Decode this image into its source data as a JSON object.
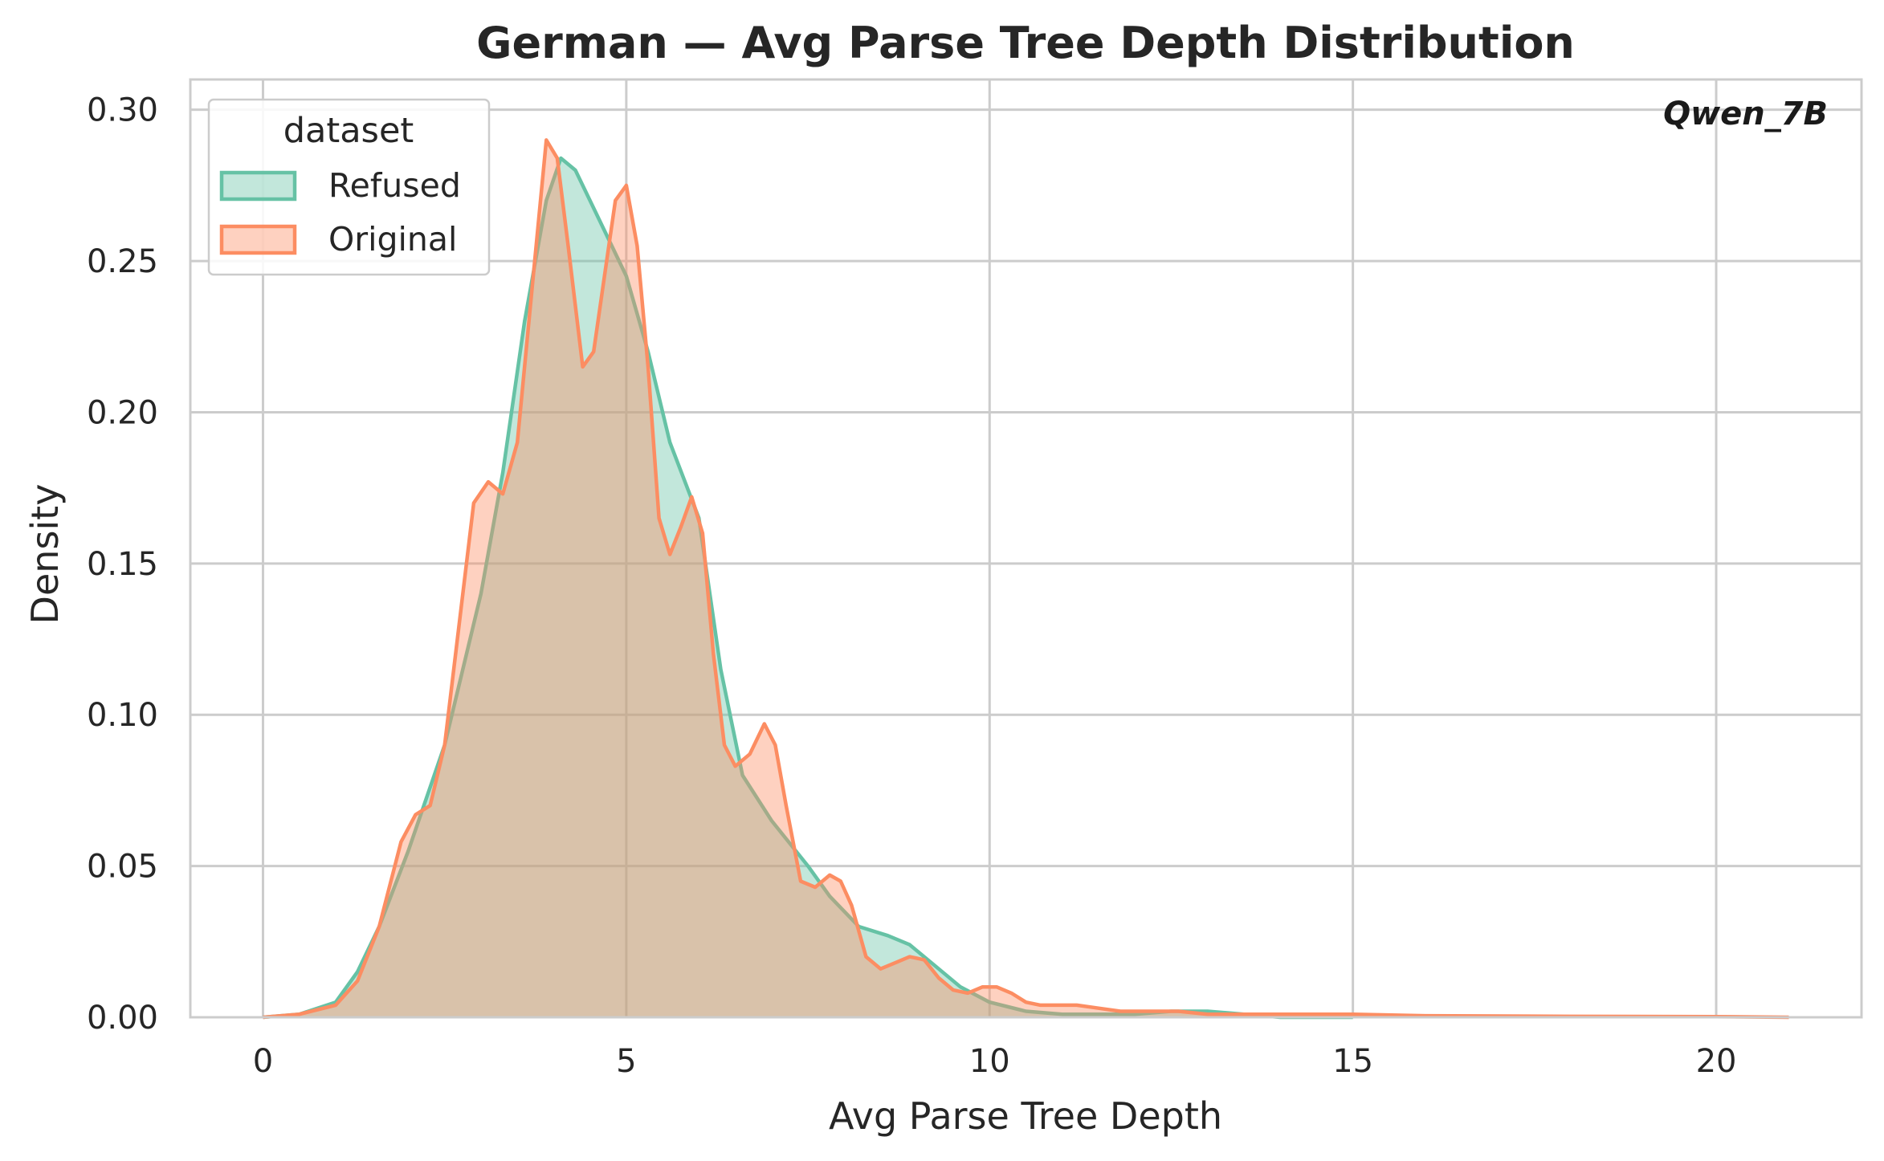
{
  "chart_data": {
    "type": "area",
    "title": "German — Avg Parse Tree Depth Distribution",
    "xlabel": "Avg Parse Tree Depth",
    "ylabel": "Density",
    "xlim": [
      -1,
      22
    ],
    "ylim": [
      0,
      0.31
    ],
    "xticks": [
      0,
      5,
      10,
      15,
      20
    ],
    "xtick_labels": [
      "0",
      "5",
      "10",
      "15",
      "20"
    ],
    "yticks": [
      0,
      0.05,
      0.1,
      0.15,
      0.2,
      0.25,
      0.3
    ],
    "ytick_labels": [
      "0.00",
      "0.05",
      "0.10",
      "0.15",
      "0.20",
      "0.25",
      "0.30"
    ],
    "grid": true,
    "legend": {
      "title": "dataset",
      "placement": "top-left"
    },
    "annotation": "Qwen_7B",
    "series": [
      {
        "name": "Refused",
        "color": "#66c2a5",
        "x": [
          0,
          0.5,
          1.0,
          1.3,
          1.6,
          2.0,
          2.5,
          3.0,
          3.3,
          3.6,
          3.9,
          4.1,
          4.3,
          4.6,
          5.0,
          5.3,
          5.6,
          6.0,
          6.3,
          6.6,
          7.0,
          7.5,
          7.8,
          8.2,
          8.6,
          8.9,
          9.2,
          9.6,
          10.0,
          10.5,
          11.0,
          11.5,
          12.0,
          12.5,
          13.0,
          13.5,
          14.0,
          14.5,
          15.0
        ],
        "values": [
          0.0,
          0.001,
          0.005,
          0.015,
          0.03,
          0.055,
          0.09,
          0.14,
          0.18,
          0.23,
          0.27,
          0.284,
          0.28,
          0.265,
          0.245,
          0.22,
          0.19,
          0.165,
          0.115,
          0.08,
          0.065,
          0.05,
          0.04,
          0.03,
          0.027,
          0.024,
          0.018,
          0.01,
          0.005,
          0.002,
          0.001,
          0.001,
          0.001,
          0.002,
          0.002,
          0.001,
          0.0,
          0.0,
          0.0
        ]
      },
      {
        "name": "Original",
        "color": "#fc8d62",
        "x": [
          0,
          0.5,
          1.0,
          1.3,
          1.6,
          1.9,
          2.1,
          2.3,
          2.5,
          2.7,
          2.9,
          3.1,
          3.3,
          3.5,
          3.7,
          3.9,
          4.05,
          4.2,
          4.4,
          4.55,
          4.7,
          4.85,
          5.0,
          5.15,
          5.3,
          5.45,
          5.6,
          5.75,
          5.9,
          6.05,
          6.2,
          6.35,
          6.5,
          6.7,
          6.9,
          7.05,
          7.2,
          7.4,
          7.6,
          7.8,
          7.95,
          8.1,
          8.3,
          8.5,
          8.7,
          8.9,
          9.1,
          9.3,
          9.5,
          9.7,
          9.9,
          10.1,
          10.3,
          10.5,
          10.7,
          10.9,
          11.2,
          11.5,
          11.8,
          12.2,
          12.6,
          13.0,
          13.5,
          14.0,
          15.0,
          16.0,
          18.0,
          20.0,
          21.0
        ],
        "values": [
          0.0,
          0.001,
          0.004,
          0.012,
          0.03,
          0.058,
          0.067,
          0.07,
          0.09,
          0.13,
          0.17,
          0.177,
          0.173,
          0.19,
          0.24,
          0.29,
          0.284,
          0.255,
          0.215,
          0.22,
          0.245,
          0.27,
          0.275,
          0.255,
          0.215,
          0.165,
          0.153,
          0.162,
          0.172,
          0.16,
          0.12,
          0.09,
          0.083,
          0.087,
          0.097,
          0.09,
          0.07,
          0.045,
          0.043,
          0.047,
          0.045,
          0.037,
          0.02,
          0.016,
          0.018,
          0.02,
          0.019,
          0.013,
          0.009,
          0.008,
          0.01,
          0.01,
          0.008,
          0.005,
          0.004,
          0.004,
          0.004,
          0.003,
          0.002,
          0.002,
          0.002,
          0.001,
          0.001,
          0.001,
          0.001,
          0.0005,
          0.0003,
          0.0002,
          0.0
        ]
      }
    ]
  }
}
